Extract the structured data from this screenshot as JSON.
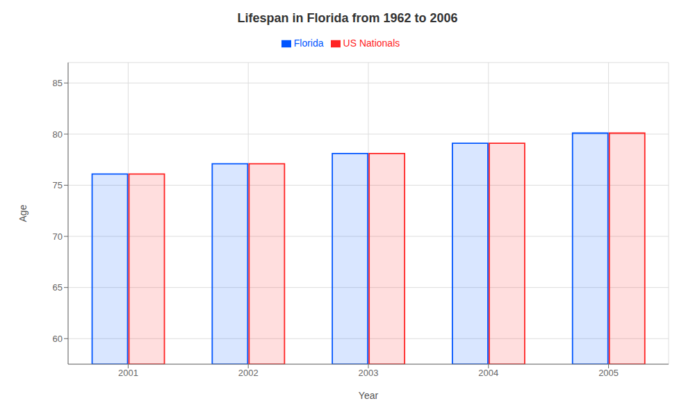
{
  "chart_data": {
    "type": "bar",
    "title": "Lifespan in Florida from 1962 to 2006",
    "x_label": "Year",
    "y_label": "Age",
    "categories": [
      "2001",
      "2002",
      "2003",
      "2004",
      "2005"
    ],
    "series": [
      {
        "name": "Florida",
        "color": "#0055ff",
        "values": [
          76.1,
          77.1,
          78.1,
          79.1,
          80.1
        ]
      },
      {
        "name": "US Nationals",
        "color": "#ff2222",
        "values": [
          76.1,
          77.1,
          78.1,
          79.1,
          80.1
        ]
      }
    ],
    "ylim": [
      57.5,
      87
    ],
    "yticks": [
      60,
      65,
      70,
      75,
      80,
      85
    ],
    "grid": true,
    "legend": "top"
  }
}
